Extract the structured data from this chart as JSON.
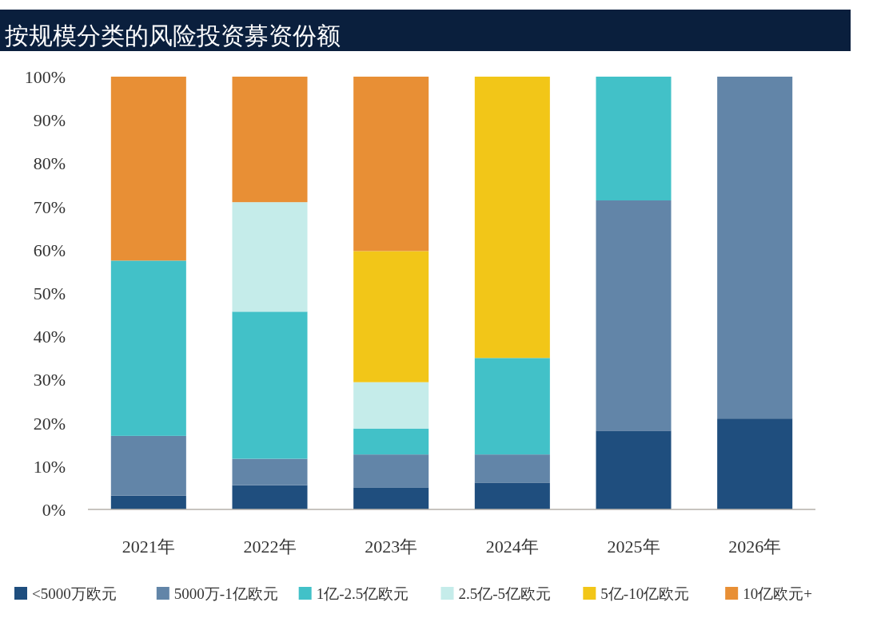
{
  "chart_data": {
    "type": "bar",
    "title": "按规模分类的风险投资募资份额",
    "categories": [
      "2021年",
      "2022年",
      "2023年",
      "2024年",
      "2025年",
      "2026年"
    ],
    "stacked": true,
    "ylim": [
      0,
      100
    ],
    "yticks": [
      {
        "value": 0,
        "label": "0%"
      },
      {
        "value": 10,
        "label": "10%"
      },
      {
        "value": 20,
        "label": "20%"
      },
      {
        "value": 30,
        "label": "30%"
      },
      {
        "value": 40,
        "label": "40%"
      },
      {
        "value": 50,
        "label": "50%"
      },
      {
        "value": 60,
        "label": "60%"
      },
      {
        "value": 70,
        "label": "70%"
      },
      {
        "value": 80,
        "label": "80%"
      },
      {
        "value": 90,
        "label": "90%"
      },
      {
        "value": 100,
        "label": "100%"
      }
    ],
    "legend": "bottom",
    "series": [
      {
        "name": "<5000万欧元",
        "color": "#1f4e7e",
        "values": [
          3.2,
          5.6,
          5.1,
          6.2,
          18.2,
          21.0
        ]
      },
      {
        "name": "5000万-1亿欧元",
        "color": "#6285a8",
        "values": [
          13.8,
          6.1,
          7.6,
          6.5,
          53.2,
          79.0
        ]
      },
      {
        "name": "1亿-2.5亿欧元",
        "color": "#42c1c8",
        "values": [
          40.5,
          34.0,
          6.0,
          22.3,
          28.6,
          null
        ]
      },
      {
        "name": "2.5亿-5亿欧元",
        "color": "#c5ecea",
        "values": [
          null,
          25.3,
          10.7,
          null,
          null,
          null
        ]
      },
      {
        "name": "5亿-10亿欧元",
        "color": "#f2c618",
        "values": [
          null,
          null,
          30.3,
          65.0,
          null,
          null
        ]
      },
      {
        "name": "10亿欧元+",
        "color": "#e88f35",
        "values": [
          42.5,
          29.0,
          40.3,
          null,
          null,
          null
        ]
      }
    ]
  }
}
